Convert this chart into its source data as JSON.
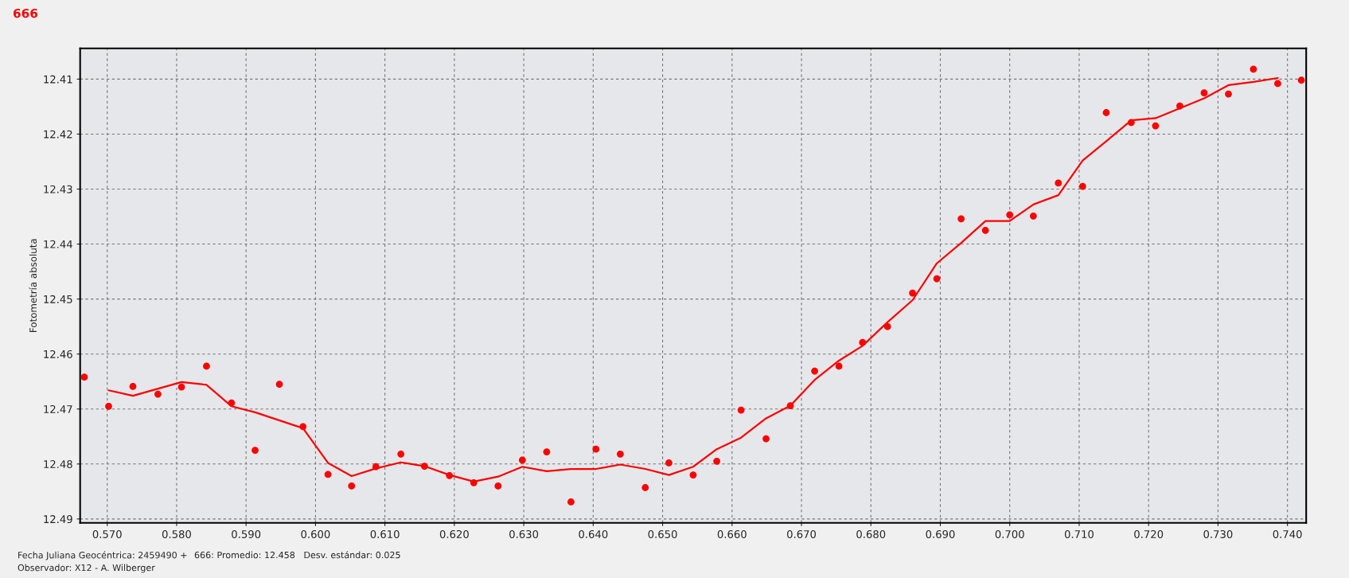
{
  "chart_data": {
    "type": "scatter",
    "title": "666",
    "ylabel": "Fotometría absoluta",
    "annotations": [
      "Fecha Juliana Geocéntrica: 2459490 +",
      "666: Promedio: 12.458   Desv. estándar: 0.025",
      "Observador: X12 - A. Wilberger"
    ],
    "xlim": [
      0.5661,
      0.7427
    ],
    "ylim": [
      12.4907,
      12.4044
    ],
    "xticks": [
      {
        "value": 0.57,
        "label": "0.570"
      },
      {
        "value": 0.58,
        "label": "0.580"
      },
      {
        "value": 0.59,
        "label": "0.590"
      },
      {
        "value": 0.6,
        "label": "0.600"
      },
      {
        "value": 0.61,
        "label": "0.610"
      },
      {
        "value": 0.62,
        "label": "0.620"
      },
      {
        "value": 0.63,
        "label": "0.630"
      },
      {
        "value": 0.64,
        "label": "0.640"
      },
      {
        "value": 0.65,
        "label": "0.650"
      },
      {
        "value": 0.66,
        "label": "0.660"
      },
      {
        "value": 0.67,
        "label": "0.670"
      },
      {
        "value": 0.68,
        "label": "0.680"
      },
      {
        "value": 0.69,
        "label": "0.690"
      },
      {
        "value": 0.7,
        "label": "0.700"
      },
      {
        "value": 0.71,
        "label": "0.710"
      },
      {
        "value": 0.72,
        "label": "0.720"
      },
      {
        "value": 0.73,
        "label": "0.730"
      },
      {
        "value": 0.74,
        "label": "0.740"
      }
    ],
    "yticks": [
      12.41,
      12.42,
      12.43,
      12.44,
      12.45,
      12.46,
      12.47,
      12.48,
      12.49
    ],
    "grid": true,
    "legend": false,
    "series": [
      {
        "marker": "circle",
        "color": "#ff0000",
        "x": [
          0.5667,
          0.5702,
          0.5737,
          0.5773,
          0.5807,
          0.5843,
          0.5879,
          0.5913,
          0.5948,
          0.5982,
          0.6018,
          0.6052,
          0.6087,
          0.6123,
          0.6157,
          0.6193,
          0.6228,
          0.6263,
          0.6298,
          0.6333,
          0.6368,
          0.6404,
          0.6439,
          0.6475,
          0.6509,
          0.6544,
          0.6578,
          0.6613,
          0.6649,
          0.6684,
          0.6719,
          0.6754,
          0.6788,
          0.6824,
          0.686,
          0.6895,
          0.693,
          0.6965,
          0.7,
          0.7034,
          0.707,
          0.7105,
          0.7139,
          0.7175,
          0.721,
          0.7245,
          0.728,
          0.7315,
          0.7351,
          0.7386,
          0.742
        ],
        "values": [
          12.4642,
          12.4695,
          12.4659,
          12.4673,
          12.466,
          12.4622,
          12.4689,
          12.4775,
          12.4655,
          12.4732,
          12.4819,
          12.484,
          12.4805,
          12.4782,
          12.4804,
          12.4821,
          12.4834,
          12.484,
          12.4793,
          12.4778,
          12.4869,
          12.4773,
          12.4782,
          12.4843,
          12.4798,
          12.482,
          12.4795,
          12.4702,
          12.4754,
          12.4694,
          12.4631,
          12.4622,
          12.4579,
          12.455,
          12.4489,
          12.4463,
          12.4354,
          12.4375,
          12.4347,
          12.4349,
          12.4289,
          12.4295,
          12.4161,
          12.4179,
          12.4185,
          12.4149,
          12.4125,
          12.4127,
          12.4082,
          12.4108,
          12.4102
        ]
      },
      {
        "type": "line",
        "line_style": "solid",
        "color": "#ff0000",
        "x": [
          0.5702,
          0.5737,
          0.5807,
          0.5843,
          0.5879,
          0.5913,
          0.5982,
          0.6018,
          0.6052,
          0.6087,
          0.6123,
          0.6157,
          0.6193,
          0.6228,
          0.6263,
          0.6298,
          0.6333,
          0.6368,
          0.6404,
          0.6439,
          0.6475,
          0.6509,
          0.6544,
          0.6578,
          0.6613,
          0.6649,
          0.6684,
          0.6719,
          0.6754,
          0.6788,
          0.6824,
          0.686,
          0.6895,
          0.693,
          0.6965,
          0.7,
          0.7034,
          0.707,
          0.7105,
          0.7139,
          0.7175,
          0.721,
          0.7245,
          0.728,
          0.7315,
          0.7351,
          0.7386
        ],
        "values": [
          12.4666,
          12.4676,
          12.4651,
          12.4656,
          12.4695,
          12.4706,
          12.4735,
          12.4798,
          12.4822,
          12.4808,
          12.4797,
          12.4804,
          12.482,
          12.4832,
          12.4823,
          12.4805,
          12.4813,
          12.4809,
          12.4809,
          12.4801,
          12.4809,
          12.482,
          12.4805,
          12.4773,
          12.4752,
          12.4717,
          12.4694,
          12.4647,
          12.4612,
          12.4585,
          12.4542,
          12.4502,
          12.4435,
          12.4398,
          12.4358,
          12.4358,
          12.4328,
          12.4311,
          12.4248,
          12.4213,
          12.4175,
          12.4171,
          12.4153,
          12.4135,
          12.4111,
          12.4105,
          12.4098
        ]
      }
    ]
  }
}
